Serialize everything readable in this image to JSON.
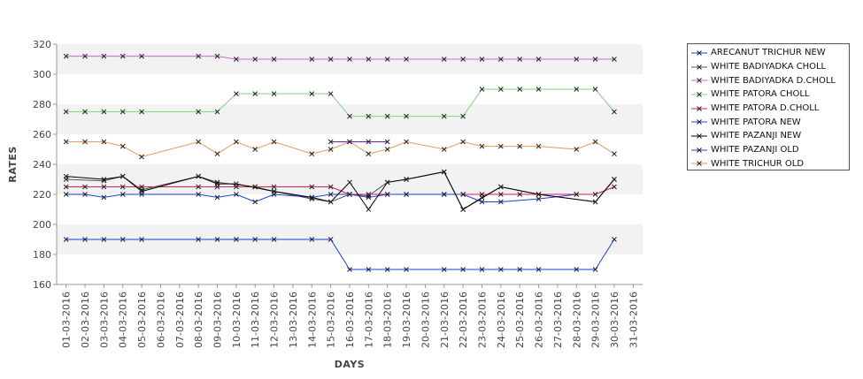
{
  "chart_data": {
    "type": "line",
    "xlabel": "DAYS",
    "ylabel": "RATES",
    "ylim": [
      160,
      320
    ],
    "yticks": [
      160,
      180,
      200,
      220,
      240,
      260,
      280,
      300,
      320
    ],
    "grid": "alternating horizontal bands",
    "legend_position": "right",
    "categories": [
      "01-03-2016",
      "02-03-2016",
      "03-03-2016",
      "04-03-2016",
      "05-03-2016",
      "06-03-2016",
      "07-03-2016",
      "08-03-2016",
      "09-03-2016",
      "10-03-2016",
      "11-03-2016",
      "12-03-2016",
      "13-03-2016",
      "14-03-2016",
      "15-03-2016",
      "16-03-2016",
      "17-03-2016",
      "18-03-2016",
      "19-03-2016",
      "20-03-2016",
      "21-03-2016",
      "22-03-2016",
      "23-03-2016",
      "24-03-2016",
      "25-03-2016",
      "26-03-2016",
      "27-03-2016",
      "28-03-2016",
      "29-03-2016",
      "30-03-2016",
      "31-03-2016"
    ],
    "series": [
      {
        "name": "ARECANUT TRICHUR NEW",
        "color": "#1a3fd0",
        "points": [
          [
            0,
            190
          ],
          [
            1,
            190
          ],
          [
            2,
            190
          ],
          [
            3,
            190
          ],
          [
            4,
            190
          ],
          [
            7,
            190
          ],
          [
            8,
            190
          ],
          [
            9,
            190
          ],
          [
            10,
            190
          ],
          [
            11,
            190
          ],
          [
            13,
            190
          ],
          [
            14,
            190
          ],
          [
            15,
            170
          ],
          [
            16,
            170
          ],
          [
            17,
            170
          ],
          [
            18,
            170
          ],
          [
            20,
            170
          ],
          [
            21,
            170
          ],
          [
            22,
            170
          ],
          [
            23,
            170
          ],
          [
            24,
            170
          ],
          [
            25,
            170
          ],
          [
            27,
            170
          ],
          [
            28,
            170
          ],
          [
            29,
            190
          ]
        ]
      },
      {
        "name": "WHITE BADIYADKA CHOLL",
        "color": "#555555",
        "points": [
          [
            0,
            230
          ],
          [
            2,
            229
          ],
          [
            3,
            232
          ],
          [
            4,
            223
          ],
          [
            7,
            232
          ],
          [
            8,
            228
          ],
          [
            10,
            225
          ],
          [
            11,
            222
          ],
          [
            13,
            217
          ],
          [
            14,
            215
          ],
          [
            15,
            220
          ],
          [
            16,
            219
          ],
          [
            17,
            228
          ],
          [
            18,
            230
          ],
          [
            20,
            235
          ],
          [
            21,
            210
          ],
          [
            22,
            218
          ],
          [
            23,
            225
          ],
          [
            25,
            220
          ],
          [
            28,
            215
          ],
          [
            29,
            230
          ]
        ]
      },
      {
        "name": "WHITE BADIYADKA D.CHOLL",
        "color": "#cc66cc",
        "points": [
          [
            0,
            312
          ],
          [
            1,
            312
          ],
          [
            2,
            312
          ],
          [
            3,
            312
          ],
          [
            4,
            312
          ],
          [
            7,
            312
          ],
          [
            8,
            312
          ],
          [
            9,
            310
          ],
          [
            10,
            310
          ],
          [
            11,
            310
          ],
          [
            13,
            310
          ],
          [
            14,
            310
          ],
          [
            15,
            310
          ],
          [
            16,
            310
          ],
          [
            17,
            310
          ],
          [
            18,
            310
          ],
          [
            20,
            310
          ],
          [
            21,
            310
          ],
          [
            22,
            310
          ],
          [
            23,
            310
          ],
          [
            24,
            310
          ],
          [
            25,
            310
          ],
          [
            27,
            310
          ],
          [
            28,
            310
          ],
          [
            29,
            310
          ]
        ]
      },
      {
        "name": "WHITE PATORA CHOLL",
        "color": "#7fd27f",
        "points": [
          [
            0,
            275
          ],
          [
            1,
            275
          ],
          [
            2,
            275
          ],
          [
            3,
            275
          ],
          [
            4,
            275
          ],
          [
            7,
            275
          ],
          [
            8,
            275
          ],
          [
            9,
            287
          ],
          [
            10,
            287
          ],
          [
            11,
            287
          ],
          [
            13,
            287
          ],
          [
            14,
            287
          ],
          [
            15,
            272
          ],
          [
            16,
            272
          ],
          [
            17,
            272
          ],
          [
            18,
            272
          ],
          [
            20,
            272
          ],
          [
            21,
            272
          ],
          [
            22,
            290
          ],
          [
            23,
            290
          ],
          [
            24,
            290
          ],
          [
            25,
            290
          ],
          [
            27,
            290
          ],
          [
            28,
            290
          ],
          [
            29,
            275
          ]
        ]
      },
      {
        "name": "WHITE PATORA D.CHOLL",
        "color": "#d81b60",
        "points": [
          [
            0,
            225
          ],
          [
            1,
            225
          ],
          [
            2,
            225
          ],
          [
            3,
            225
          ],
          [
            4,
            225
          ],
          [
            7,
            225
          ],
          [
            8,
            225
          ],
          [
            9,
            225
          ],
          [
            10,
            225
          ],
          [
            11,
            225
          ],
          [
            13,
            225
          ],
          [
            14,
            225
          ],
          [
            15,
            220
          ],
          [
            16,
            220
          ],
          [
            17,
            220
          ],
          [
            18,
            220
          ],
          [
            20,
            220
          ],
          [
            21,
            220
          ],
          [
            22,
            220
          ],
          [
            23,
            220
          ],
          [
            24,
            220
          ],
          [
            25,
            220
          ],
          [
            27,
            220
          ],
          [
            28,
            220
          ],
          [
            29,
            225
          ]
        ]
      },
      {
        "name": "WHITE PATORA NEW",
        "color": "#1a3fd0",
        "points": [
          [
            0,
            220
          ],
          [
            1,
            220
          ],
          [
            2,
            218
          ],
          [
            3,
            220
          ],
          [
            4,
            220
          ],
          [
            7,
            220
          ],
          [
            8,
            218
          ],
          [
            9,
            220
          ],
          [
            10,
            215
          ],
          [
            11,
            220
          ],
          [
            13,
            218
          ],
          [
            14,
            220
          ],
          [
            15,
            220
          ],
          [
            16,
            218
          ],
          [
            17,
            220
          ],
          [
            18,
            220
          ],
          [
            20,
            220
          ],
          [
            21,
            220
          ],
          [
            22,
            215
          ],
          [
            23,
            215
          ],
          [
            25,
            217
          ],
          [
            27,
            220
          ]
        ]
      },
      {
        "name": "WHITE PAZANJI NEW",
        "color": "#000000",
        "points": [
          [
            0,
            232
          ],
          [
            2,
            230
          ],
          [
            3,
            232
          ],
          [
            4,
            222
          ],
          [
            7,
            232
          ],
          [
            8,
            227
          ],
          [
            9,
            227
          ],
          [
            11,
            222
          ],
          [
            13,
            218
          ],
          [
            14,
            215
          ],
          [
            15,
            228
          ],
          [
            16,
            210
          ],
          [
            17,
            228
          ],
          [
            18,
            230
          ],
          [
            20,
            235
          ],
          [
            21,
            210
          ],
          [
            23,
            225
          ],
          [
            25,
            220
          ],
          [
            28,
            215
          ],
          [
            29,
            230
          ]
        ]
      },
      {
        "name": "WHITE PAZANJI OLD",
        "color": "#6a1fb0",
        "points": [
          [
            14,
            255
          ],
          [
            15,
            255
          ],
          [
            16,
            255
          ],
          [
            17,
            255
          ]
        ]
      },
      {
        "name": "WHITE TRICHUR OLD",
        "color": "#e69a55",
        "points": [
          [
            0,
            255
          ],
          [
            1,
            255
          ],
          [
            2,
            255
          ],
          [
            3,
            252
          ],
          [
            4,
            245
          ],
          [
            7,
            255
          ],
          [
            8,
            247
          ],
          [
            9,
            255
          ],
          [
            10,
            250
          ],
          [
            11,
            255
          ],
          [
            13,
            247
          ],
          [
            14,
            250
          ],
          [
            15,
            255
          ],
          [
            16,
            247
          ],
          [
            17,
            250
          ],
          [
            18,
            255
          ],
          [
            20,
            250
          ],
          [
            21,
            255
          ],
          [
            22,
            252
          ],
          [
            23,
            252
          ],
          [
            24,
            252
          ],
          [
            25,
            252
          ],
          [
            27,
            250
          ],
          [
            28,
            255
          ],
          [
            29,
            247
          ]
        ]
      }
    ]
  }
}
